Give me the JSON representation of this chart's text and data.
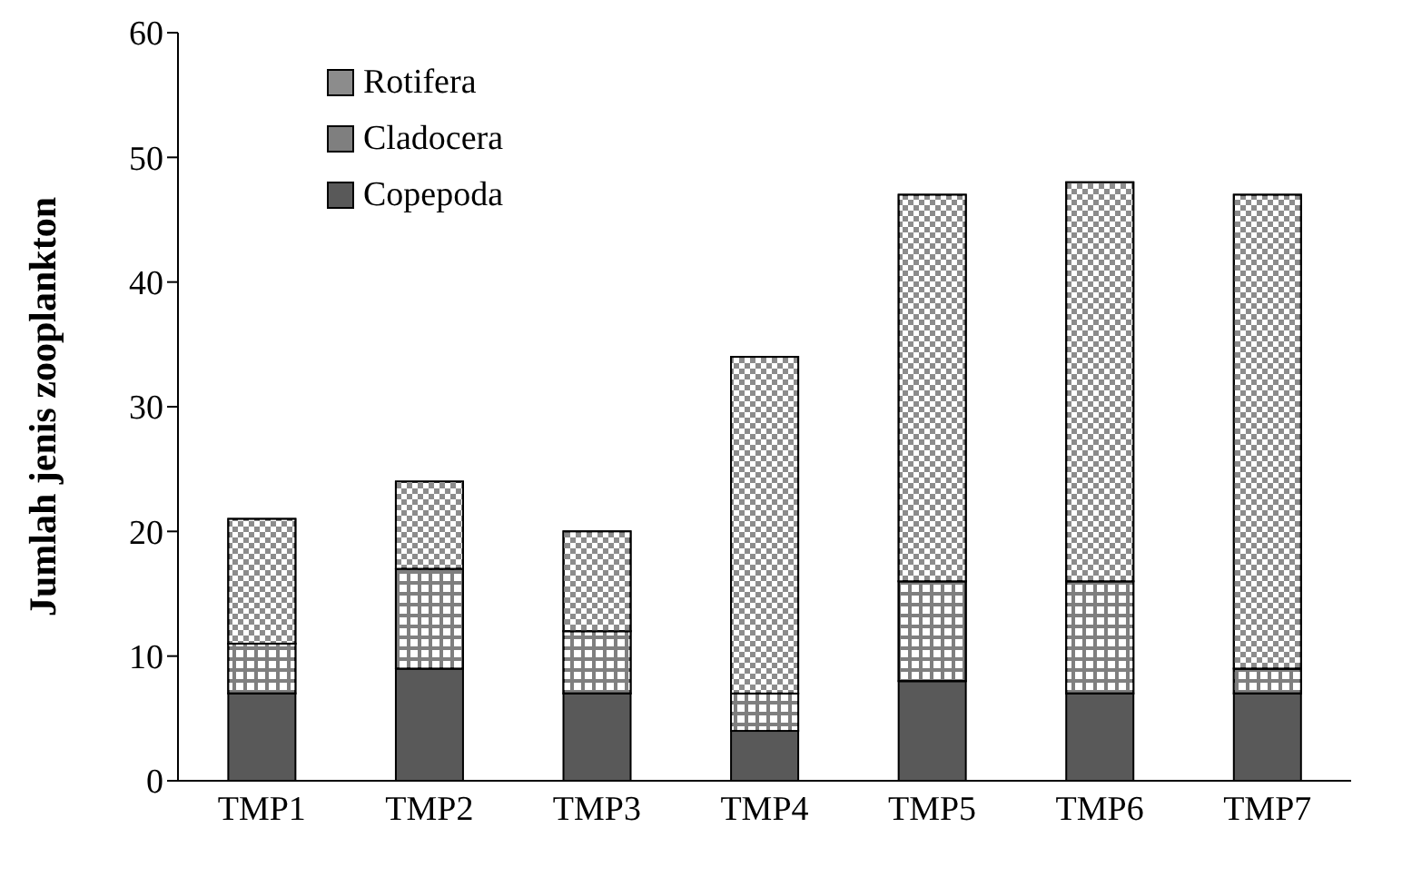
{
  "chart_data": {
    "type": "bar",
    "stacked": true,
    "ylabel": "Jumlah jenis zooplankton",
    "categories": [
      "TMP1",
      "TMP2",
      "TMP3",
      "TMP4",
      "TMP5",
      "TMP6",
      "TMP7"
    ],
    "series": [
      {
        "name": "Copepoda",
        "color": "#595959",
        "values": [
          7,
          9,
          7,
          4,
          8,
          7,
          7
        ]
      },
      {
        "name": "Cladocera",
        "color": "#7f7f7f",
        "values": [
          4,
          8,
          5,
          3,
          8,
          9,
          2
        ]
      },
      {
        "name": "Rotifera",
        "color": "#8c8c8c",
        "values": [
          10,
          7,
          8,
          27,
          31,
          32,
          38
        ]
      }
    ],
    "ylim": [
      0,
      60
    ],
    "yticks": [
      0,
      10,
      20,
      30,
      40,
      50,
      60
    ],
    "grid": false,
    "legend": "top left"
  }
}
